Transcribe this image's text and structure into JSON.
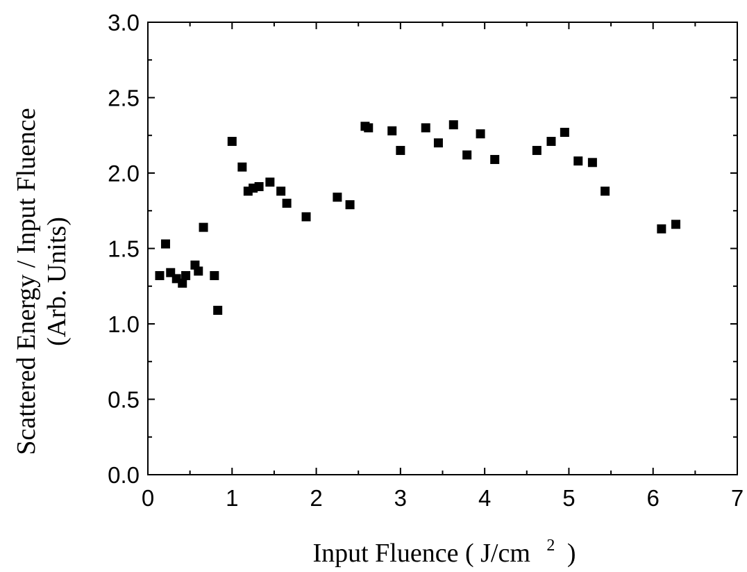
{
  "chart_data": {
    "type": "scatter",
    "xlabel": "Input Fluence ( J/cm",
    "xlabel_sup": "2",
    "xlabel_close": ")",
    "ylabel_line1": "Scattered Energy / Input Fluence",
    "ylabel_line2": "(Arb. Units)",
    "xlim": [
      0,
      7
    ],
    "ylim": [
      0.0,
      3.0
    ],
    "xticks": [
      "0",
      "1",
      "2",
      "3",
      "4",
      "5",
      "6",
      "7"
    ],
    "yticks": [
      "0.0",
      "0.5",
      "1.0",
      "1.5",
      "2.0",
      "2.5",
      "3.0"
    ],
    "marker": "square",
    "marker_color": "#000000",
    "grid": false,
    "series": [
      {
        "points": [
          [
            0.14,
            1.32
          ],
          [
            0.21,
            1.53
          ],
          [
            0.27,
            1.34
          ],
          [
            0.34,
            1.3
          ],
          [
            0.41,
            1.27
          ],
          [
            0.45,
            1.32
          ],
          [
            0.56,
            1.39
          ],
          [
            0.6,
            1.35
          ],
          [
            0.66,
            1.64
          ],
          [
            0.79,
            1.32
          ],
          [
            0.83,
            1.09
          ],
          [
            1.0,
            2.21
          ],
          [
            1.12,
            2.04
          ],
          [
            1.19,
            1.88
          ],
          [
            1.25,
            1.9
          ],
          [
            1.32,
            1.91
          ],
          [
            1.45,
            1.94
          ],
          [
            1.58,
            1.88
          ],
          [
            1.65,
            1.8
          ],
          [
            1.88,
            1.71
          ],
          [
            2.25,
            1.84
          ],
          [
            2.4,
            1.79
          ],
          [
            2.58,
            2.31
          ],
          [
            2.62,
            2.3
          ],
          [
            2.9,
            2.28
          ],
          [
            3.0,
            2.15
          ],
          [
            3.3,
            2.3
          ],
          [
            3.45,
            2.2
          ],
          [
            3.63,
            2.32
          ],
          [
            3.79,
            2.12
          ],
          [
            3.95,
            2.26
          ],
          [
            4.12,
            2.09
          ],
          [
            4.62,
            2.15
          ],
          [
            4.79,
            2.21
          ],
          [
            4.95,
            2.27
          ],
          [
            5.11,
            2.08
          ],
          [
            5.28,
            2.07
          ],
          [
            5.43,
            1.88
          ],
          [
            6.1,
            1.63
          ],
          [
            6.27,
            1.66
          ]
        ]
      }
    ]
  }
}
